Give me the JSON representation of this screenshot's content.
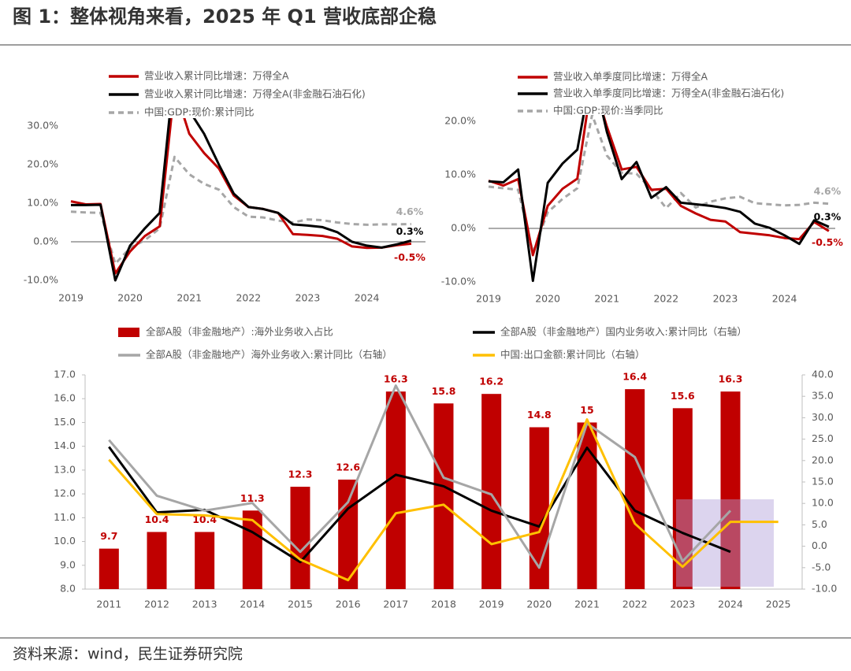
{
  "title": "图 1：整体视角来看，2025 年 Q1 营收底部企稳",
  "source": "资料来源：wind，民生证券研究院",
  "chart_data": [
    {
      "type": "line",
      "categories": [
        "2019",
        null,
        null,
        null,
        "2020",
        null,
        null,
        null,
        "2021",
        null,
        null,
        null,
        "2022",
        null,
        null,
        null,
        "2023",
        null,
        null,
        null,
        "2024",
        null,
        null,
        null
      ],
      "ylim": [
        -10,
        30
      ],
      "yticks": [
        {
          "value": -10,
          "label": "-10.0%"
        },
        {
          "value": 0,
          "label": "0.0%"
        },
        {
          "value": 10,
          "label": "10.0%"
        },
        {
          "value": 20,
          "label": "20.0%"
        },
        {
          "value": 30,
          "label": "30.0%"
        }
      ],
      "grid": false,
      "series": [
        {
          "name": "营业收入累计同比增速：万得全A",
          "color": "#c00000",
          "style": "solid",
          "values": [
            10.5,
            9.7,
            9.8,
            -8.2,
            -2.5,
            1.5,
            4.0,
            40,
            28,
            23,
            19,
            12,
            9,
            8.5,
            7.5,
            2,
            1.8,
            1.5,
            0.8,
            -1.2,
            -1.6,
            -1.5,
            -0.9,
            -0.5
          ],
          "value_labels": [
            null,
            null,
            null,
            null,
            null,
            null,
            null,
            null,
            null,
            null,
            null,
            null,
            null,
            null,
            null,
            null,
            null,
            null,
            null,
            null,
            null,
            null,
            null,
            "-0.5%"
          ]
        },
        {
          "name": "营业收入累计同比增速：万得全A(非金融石油石化)",
          "color": "#000000",
          "style": "solid",
          "values": [
            9.5,
            9.5,
            9.6,
            -10,
            -1,
            3.5,
            7.5,
            45,
            34,
            28,
            20,
            12.5,
            9,
            8.5,
            7.5,
            4.5,
            4.2,
            3.8,
            2.5,
            0,
            -1,
            -1.5,
            -0.7,
            0.3
          ],
          "value_labels": [
            null,
            null,
            null,
            null,
            null,
            null,
            null,
            null,
            null,
            null,
            null,
            null,
            null,
            null,
            null,
            null,
            null,
            null,
            null,
            null,
            null,
            null,
            null,
            "0.3%"
          ]
        },
        {
          "name": "中国:GDP:现价:累计同比",
          "color": "#a6a6a6",
          "style": "dashed",
          "values": [
            7.8,
            7.6,
            7.5,
            -5.7,
            -1.6,
            0.4,
            3.5,
            22,
            17.5,
            15,
            13.5,
            9,
            6.5,
            6.3,
            5.5,
            5.0,
            5.8,
            5.6,
            5.0,
            4.6,
            4.4,
            4.5,
            4.5,
            4.6
          ],
          "value_labels": [
            null,
            null,
            null,
            null,
            null,
            null,
            null,
            null,
            null,
            null,
            null,
            null,
            null,
            null,
            null,
            null,
            null,
            null,
            null,
            null,
            null,
            null,
            null,
            "4.6%"
          ]
        }
      ]
    },
    {
      "type": "line",
      "categories": [
        "2019",
        null,
        null,
        null,
        "2020",
        null,
        null,
        null,
        "2021",
        null,
        null,
        null,
        "2022",
        null,
        null,
        null,
        "2023",
        null,
        null,
        null,
        "2024",
        null,
        null,
        null
      ],
      "ylim": [
        -10,
        20
      ],
      "yticks": [
        {
          "value": -10,
          "label": "-10.0%"
        },
        {
          "value": 0,
          "label": "0.0%"
        },
        {
          "value": 10,
          "label": "10.0%"
        },
        {
          "value": 20,
          "label": "20.0%"
        }
      ],
      "grid": false,
      "series": [
        {
          "name": "营业收入单季度同比增速：万得全A",
          "color": "#c00000",
          "style": "solid",
          "values": [
            8.9,
            8,
            9.2,
            -5,
            4.2,
            7.4,
            9.3,
            28,
            19,
            11,
            11.5,
            7.2,
            7.4,
            4.2,
            2.8,
            1.6,
            1.3,
            -0.7,
            -1,
            -1.3,
            -1.8,
            -2,
            1.2,
            -0.5
          ],
          "value_labels": [
            null,
            null,
            null,
            null,
            null,
            null,
            null,
            null,
            null,
            null,
            null,
            null,
            null,
            null,
            null,
            null,
            null,
            null,
            null,
            null,
            null,
            null,
            null,
            "-0.5%"
          ]
        },
        {
          "name": "营业收入单季度同比增速：万得全A(非金融石油石化)",
          "color": "#000000",
          "style": "solid",
          "values": [
            8.8,
            8.6,
            11,
            -9.8,
            8.5,
            12.1,
            14.7,
            30,
            18,
            9.2,
            12.4,
            5.7,
            7.7,
            4.8,
            4.5,
            4.2,
            3.8,
            3.1,
            0.9,
            0.1,
            -1.3,
            -2.9,
            1.5,
            0.3
          ],
          "value_labels": [
            null,
            null,
            null,
            null,
            null,
            null,
            null,
            null,
            null,
            null,
            null,
            null,
            null,
            null,
            null,
            null,
            null,
            null,
            null,
            null,
            null,
            null,
            null,
            "0.3%"
          ]
        },
        {
          "name": "中国:GDP:现价:当季同比",
          "color": "#a6a6a6",
          "style": "dashed",
          "values": [
            7.8,
            7.5,
            7.2,
            -4.5,
            3.0,
            5.5,
            7.5,
            21.2,
            13.6,
            10.4,
            10.2,
            7.3,
            3.8,
            6.6,
            3.9,
            5.0,
            5.6,
            5.9,
            4.7,
            4.5,
            4.3,
            4.4,
            4.8,
            4.6
          ],
          "value_labels": [
            null,
            null,
            null,
            null,
            null,
            null,
            null,
            null,
            null,
            null,
            null,
            null,
            null,
            null,
            null,
            null,
            null,
            null,
            null,
            null,
            null,
            null,
            null,
            "4.6%"
          ]
        }
      ]
    },
    {
      "type": "combo",
      "categories": [
        "2011",
        "2012",
        "2013",
        "2014",
        "2015",
        "2016",
        "2017",
        "2018",
        "2019",
        "2020",
        "2021",
        "2022",
        "2023",
        "2024",
        "2025"
      ],
      "ylim": [
        8,
        17
      ],
      "yticks": [
        {
          "value": 8,
          "label": "8.0"
        },
        {
          "value": 9,
          "label": "9.0"
        },
        {
          "value": 10,
          "label": "10.0"
        },
        {
          "value": 11,
          "label": "11.0"
        },
        {
          "value": 12,
          "label": "12.0"
        },
        {
          "value": 13,
          "label": "13.0"
        },
        {
          "value": 14,
          "label": "14.0"
        },
        {
          "value": 15,
          "label": "15.0"
        },
        {
          "value": 16,
          "label": "16.0"
        },
        {
          "value": 17,
          "label": "17.0"
        }
      ],
      "y2lim": [
        -10,
        40
      ],
      "y2ticks": [
        {
          "value": -10,
          "label": "-10.0"
        },
        {
          "value": -5,
          "label": "-5.0"
        },
        {
          "value": 0,
          "label": "0.0"
        },
        {
          "value": 5,
          "label": "5.0"
        },
        {
          "value": 10,
          "label": "10.0"
        },
        {
          "value": 15,
          "label": "15.0"
        },
        {
          "value": 20,
          "label": "20.0"
        },
        {
          "value": 25,
          "label": "25.0"
        },
        {
          "value": 30,
          "label": "30.0"
        },
        {
          "value": 35,
          "label": "35.0"
        },
        {
          "value": 40,
          "label": "40.0"
        }
      ],
      "grid": false,
      "series": [
        {
          "name": "全部A股（非金融地产）:海外业务收入占比",
          "color": "#c00000",
          "type": "bar",
          "values": [
            9.7,
            10.4,
            10.4,
            11.3,
            12.3,
            12.6,
            16.3,
            15.8,
            16.2,
            14.8,
            15.0,
            16.4,
            15.6,
            16.3,
            null
          ]
        },
        {
          "name": "全部A股（非金融地产）国内业务收入:累计同比（右轴）",
          "color": "#000000",
          "type": "line",
          "axis": "y2",
          "values": [
            23.2,
            7.9,
            8.5,
            3.3,
            -3.7,
            8.8,
            16.7,
            14,
            8.3,
            4.6,
            23,
            8.3,
            3.1,
            -1.3,
            null
          ]
        },
        {
          "name": "全部A股（非金融地产）海外业务收入:累计同比（右轴）",
          "color": "#a6a6a6",
          "type": "line",
          "axis": "y2",
          "values": [
            24.8,
            11.8,
            8.3,
            10.1,
            -1.3,
            10.3,
            37.5,
            16,
            12.1,
            -5,
            28.7,
            20.8,
            -3.5,
            8.3,
            null
          ]
        },
        {
          "name": "中国:出口金额:累计同比（右轴）",
          "color": "#ffc000",
          "type": "line",
          "axis": "y2",
          "values": [
            20.2,
            7.5,
            7.2,
            6.1,
            -3.1,
            -7.9,
            7.7,
            9.7,
            0.5,
            3.3,
            29.6,
            5.3,
            -4.8,
            5.7,
            5.7
          ]
        }
      ]
    }
  ]
}
